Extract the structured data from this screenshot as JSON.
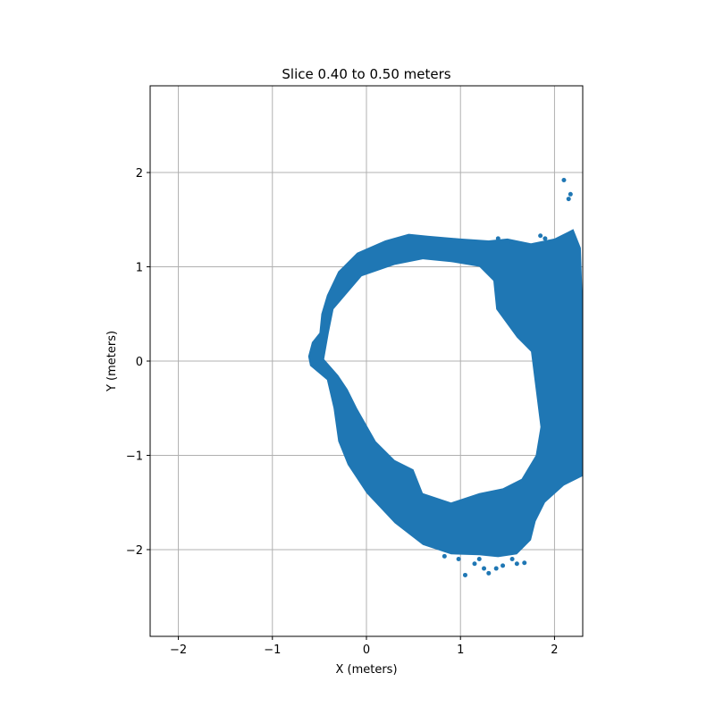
{
  "chart_data": {
    "type": "scatter",
    "title": "Slice 0.40 to 0.50 meters",
    "xlabel": "X (meters)",
    "ylabel": "Y (meters)",
    "xlim": [
      -2.3,
      2.3
    ],
    "ylim": [
      -2.92,
      2.92
    ],
    "grid": true,
    "x_ticks": [
      -2,
      -1,
      0,
      1,
      2
    ],
    "y_ticks": [
      2,
      1,
      0,
      -1,
      -2
    ],
    "x_tick_labels": [
      "−2",
      "−1",
      "0",
      "1",
      "2"
    ],
    "y_tick_labels": [
      "2",
      "1",
      "0",
      "−1",
      "−2"
    ],
    "series_color": "#1f77b4",
    "outer_boundary": [
      [
        -0.62,
        0.05
      ],
      [
        -0.58,
        0.2
      ],
      [
        -0.5,
        0.3
      ],
      [
        -0.48,
        0.5
      ],
      [
        -0.42,
        0.7
      ],
      [
        -0.3,
        0.95
      ],
      [
        -0.1,
        1.15
      ],
      [
        0.2,
        1.28
      ],
      [
        0.45,
        1.35
      ],
      [
        0.65,
        1.33
      ],
      [
        1.0,
        1.3
      ],
      [
        1.3,
        1.28
      ],
      [
        1.5,
        1.3
      ],
      [
        1.75,
        1.25
      ],
      [
        2.0,
        1.3
      ],
      [
        2.2,
        1.4
      ],
      [
        2.28,
        1.2
      ],
      [
        2.3,
        0.6
      ],
      [
        2.3,
        -0.6
      ],
      [
        2.3,
        -1.22
      ],
      [
        2.1,
        -1.32
      ],
      [
        1.9,
        -1.5
      ],
      [
        1.8,
        -1.7
      ],
      [
        1.75,
        -1.9
      ],
      [
        1.6,
        -2.05
      ],
      [
        1.4,
        -2.08
      ],
      [
        1.2,
        -2.06
      ],
      [
        0.9,
        -2.05
      ],
      [
        0.6,
        -1.95
      ],
      [
        0.3,
        -1.72
      ],
      [
        0.0,
        -1.4
      ],
      [
        -0.2,
        -1.1
      ],
      [
        -0.3,
        -0.85
      ],
      [
        -0.35,
        -0.5
      ],
      [
        -0.42,
        -0.2
      ],
      [
        -0.6,
        -0.05
      ]
    ],
    "inner_boundary": [
      [
        -0.45,
        0.02
      ],
      [
        -0.4,
        0.3
      ],
      [
        -0.35,
        0.55
      ],
      [
        -0.05,
        0.9
      ],
      [
        0.3,
        1.02
      ],
      [
        0.6,
        1.08
      ],
      [
        0.9,
        1.05
      ],
      [
        1.2,
        1.0
      ],
      [
        1.35,
        0.85
      ],
      [
        1.38,
        0.55
      ],
      [
        1.6,
        0.25
      ],
      [
        1.75,
        0.1
      ],
      [
        1.8,
        -0.3
      ],
      [
        1.85,
        -0.7
      ],
      [
        1.8,
        -1.0
      ],
      [
        1.65,
        -1.25
      ],
      [
        1.45,
        -1.35
      ],
      [
        1.2,
        -1.4
      ],
      [
        0.9,
        -1.5
      ],
      [
        0.6,
        -1.4
      ],
      [
        0.5,
        -1.15
      ],
      [
        0.3,
        -1.05
      ],
      [
        0.1,
        -0.85
      ],
      [
        -0.1,
        -0.5
      ],
      [
        -0.2,
        -0.3
      ],
      [
        -0.3,
        -0.15
      ]
    ],
    "scatter_points": [
      [
        2.1,
        1.92
      ],
      [
        2.17,
        1.77
      ],
      [
        2.15,
        1.72
      ],
      [
        1.85,
        1.33
      ],
      [
        1.9,
        1.3
      ],
      [
        1.55,
        1.25
      ],
      [
        1.4,
        1.3
      ],
      [
        0.83,
        -2.07
      ],
      [
        0.98,
        -2.1
      ],
      [
        1.15,
        -2.15
      ],
      [
        1.25,
        -2.2
      ],
      [
        1.3,
        -2.25
      ],
      [
        1.38,
        -2.2
      ],
      [
        1.2,
        -2.1
      ],
      [
        1.6,
        -2.15
      ],
      [
        1.68,
        -2.14
      ],
      [
        1.55,
        -2.1
      ],
      [
        1.05,
        -2.27
      ],
      [
        1.45,
        -2.17
      ]
    ]
  }
}
